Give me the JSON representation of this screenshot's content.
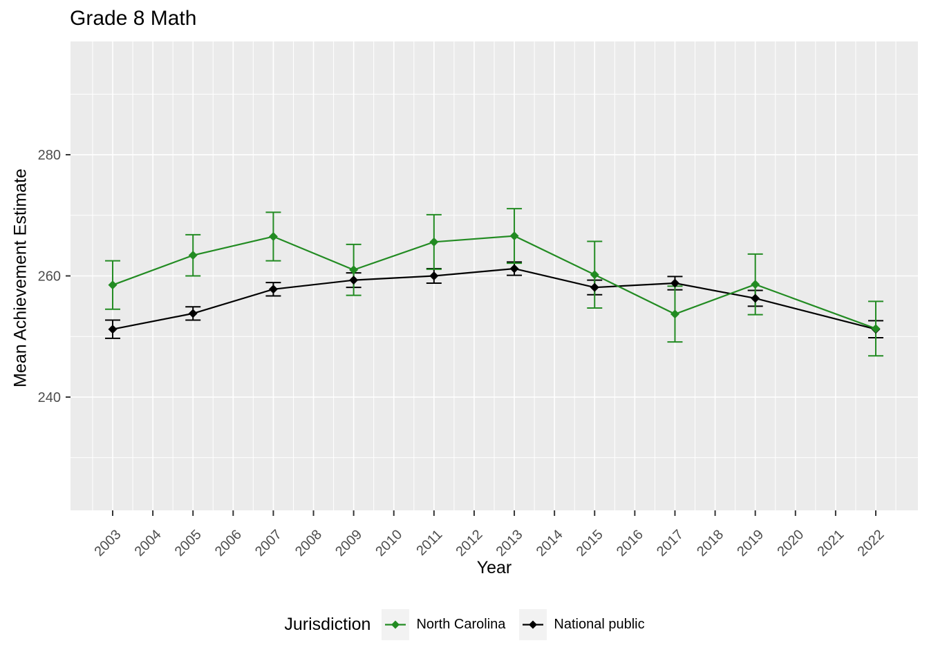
{
  "title": "Grade 8 Math",
  "x_axis_title": "Year",
  "y_axis_title": "Mean Achievement Estimate",
  "legend": {
    "title": "Jurisdiction",
    "items": [
      {
        "label": "North Carolina",
        "color": "#228B22"
      },
      {
        "label": "National public",
        "color": "#000000"
      }
    ]
  },
  "colors": {
    "panel_bg": "#EBEBEB",
    "grid": "#FFFFFF",
    "tick_mark": "#333333",
    "tick_text": "#4D4D4D",
    "legend_key_bg": "#F2F2F2",
    "north_carolina": "#228B22",
    "national_public": "#000000"
  },
  "chart_data": {
    "type": "line",
    "title": "Grade 8 Math",
    "xlabel": "Year",
    "ylabel": "Mean Achievement Estimate",
    "xlim": [
      2001.95,
      2023.05
    ],
    "ylim": [
      221.3,
      298.7
    ],
    "x_ticks": [
      2003,
      2004,
      2005,
      2006,
      2007,
      2008,
      2009,
      2010,
      2011,
      2012,
      2013,
      2014,
      2015,
      2016,
      2017,
      2018,
      2019,
      2020,
      2021,
      2022
    ],
    "y_ticks": [
      240,
      260,
      280
    ],
    "grid": "major+minor",
    "legend_position": "bottom",
    "error_bars": true,
    "marker": "diamond",
    "series": [
      {
        "name": "National public",
        "color": "#000000",
        "x": [
          2003,
          2005,
          2007,
          2009,
          2011,
          2013,
          2015,
          2017,
          2019,
          2022
        ],
        "y": [
          251.2,
          253.8,
          257.8,
          259.3,
          260.0,
          261.2,
          258.1,
          258.8,
          256.3,
          251.2
        ],
        "error": [
          1.5,
          1.1,
          1.1,
          1.2,
          1.2,
          1.1,
          1.2,
          1.1,
          1.3,
          1.4
        ]
      },
      {
        "name": "North Carolina",
        "color": "#228B22",
        "x": [
          2003,
          2005,
          2007,
          2009,
          2011,
          2013,
          2015,
          2017,
          2019,
          2022
        ],
        "y": [
          258.5,
          263.4,
          266.5,
          261.0,
          265.6,
          266.6,
          260.2,
          253.7,
          258.6,
          251.3
        ],
        "error": [
          4.0,
          3.4,
          4.0,
          4.2,
          4.5,
          4.5,
          5.5,
          4.6,
          5.0,
          4.5
        ]
      }
    ]
  }
}
